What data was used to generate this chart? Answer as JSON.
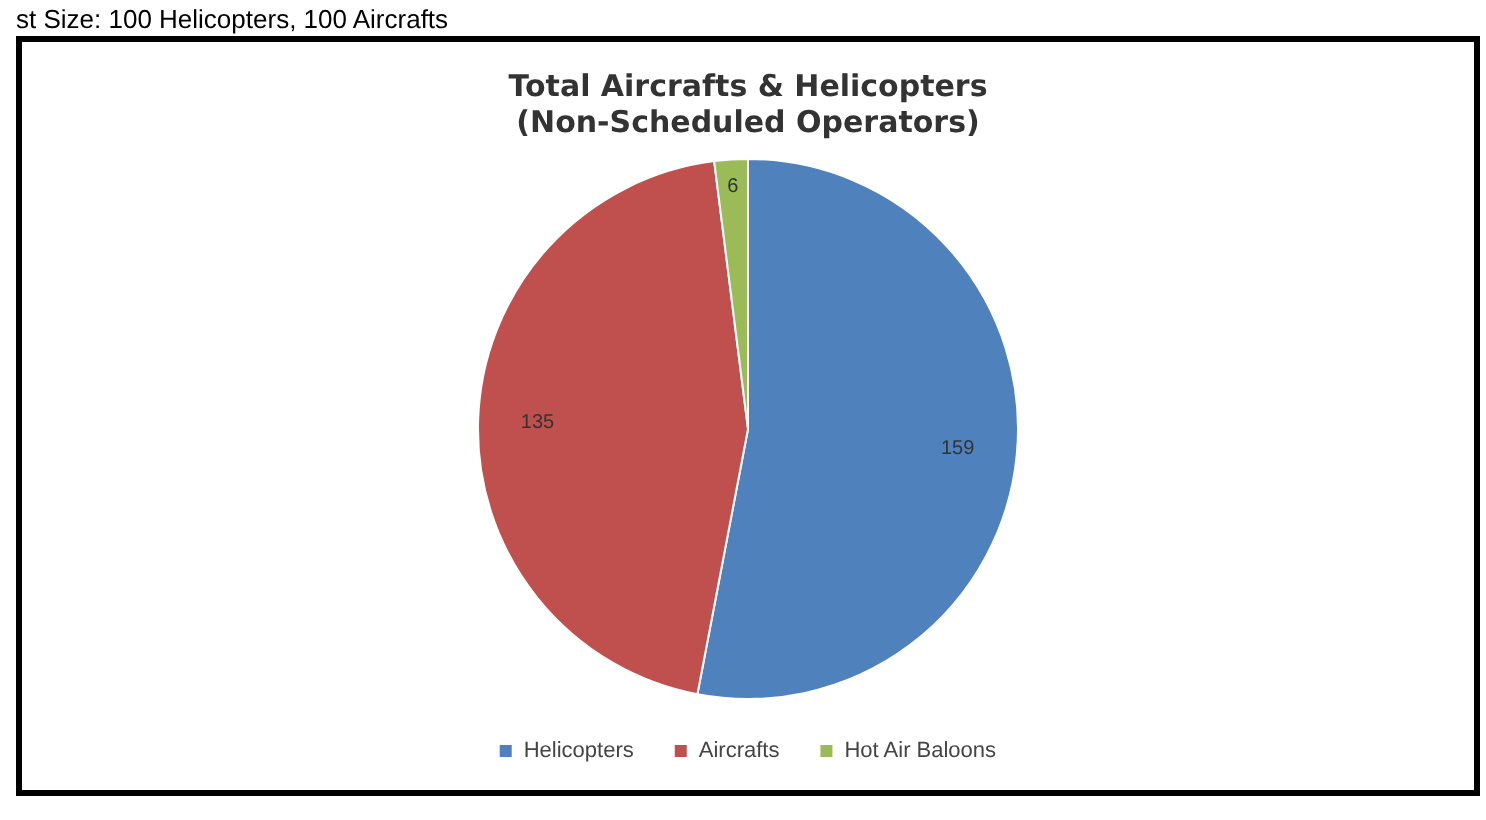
{
  "chart_data": {
    "type": "pie",
    "title": [
      "Total Aircrafts & Helicopters",
      "(Non-Scheduled Operators)"
    ],
    "annotations": [
      "st Size: 100 Helicopters, 100 Aircrafts"
    ],
    "categories": [
      "Helicopters",
      "Aircrafts",
      "Hot Air Baloons"
    ],
    "values": [
      159,
      135,
      6
    ],
    "colors": [
      "#4f81bd",
      "#c0504d",
      "#9bbb59"
    ],
    "data_labels": true,
    "legend": "bottom"
  }
}
